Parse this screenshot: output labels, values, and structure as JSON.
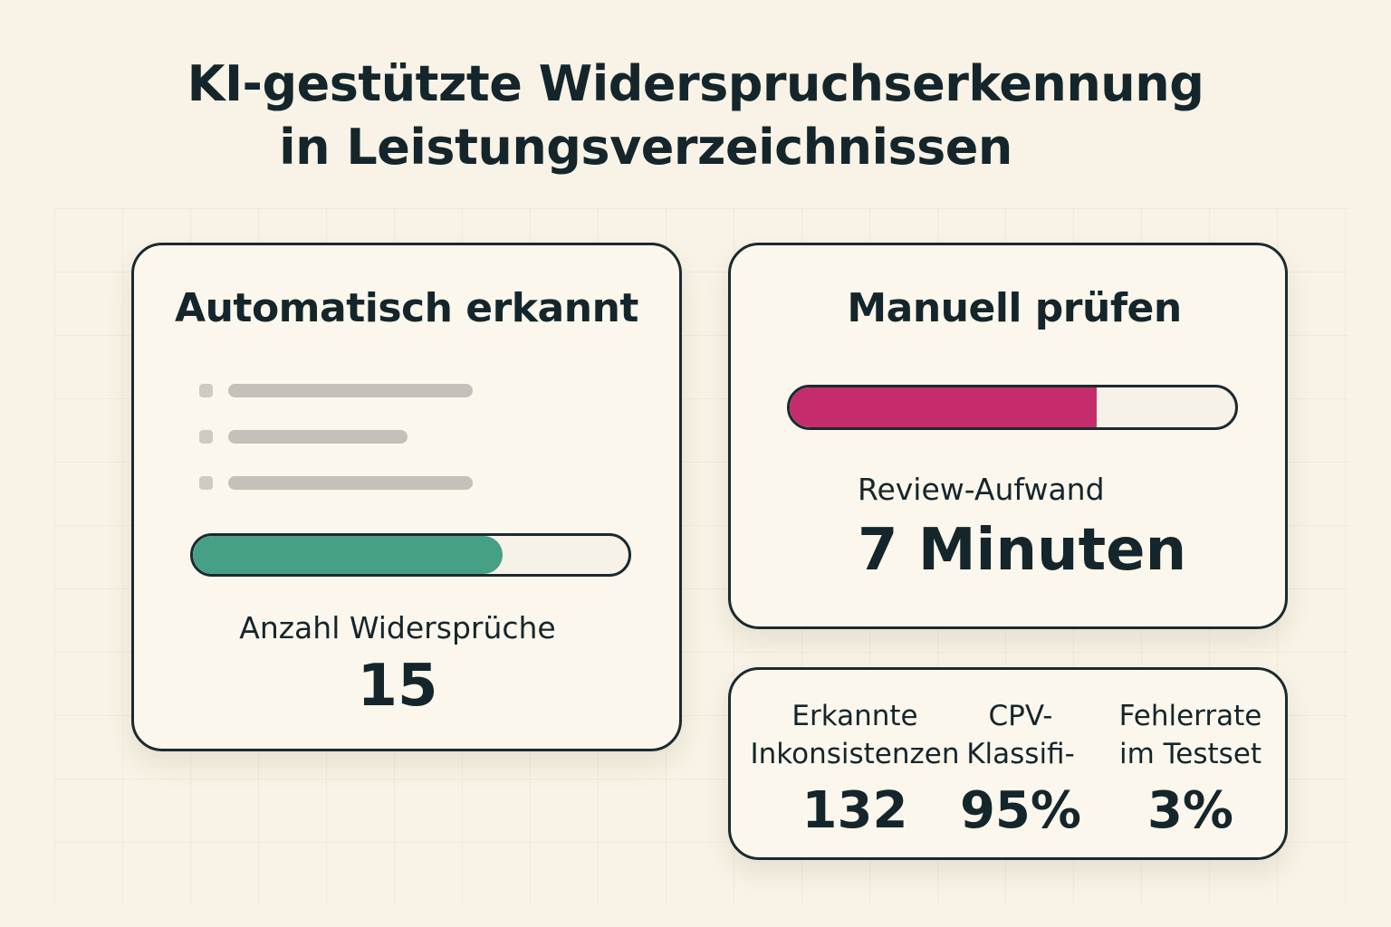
{
  "header": {
    "title_line1": "KI-gestützte Widerspruchserkennung",
    "title_line2": "in Leistungsverzeichnissen"
  },
  "auto_card": {
    "title": "Automatisch erkannt",
    "progress_fraction": 0.71,
    "progress_color": "#46a085",
    "metric_label": "Anzahl Widersprüche",
    "metric_value": "15"
  },
  "manual_card": {
    "title": "Manuell prüfen",
    "progress_fraction": 0.69,
    "progress_color": "#c42c6c",
    "metric_label": "Review-Aufwand",
    "metric_value": "7 Minuten"
  },
  "stats_card": {
    "stats": [
      {
        "label": "Erkannte\nInkonsistenzen",
        "value": "132"
      },
      {
        "label": "CPV-\nKlassifi-",
        "value": "95%"
      },
      {
        "label": "Fehlerrate\nim Testset",
        "value": "3%"
      }
    ]
  }
}
